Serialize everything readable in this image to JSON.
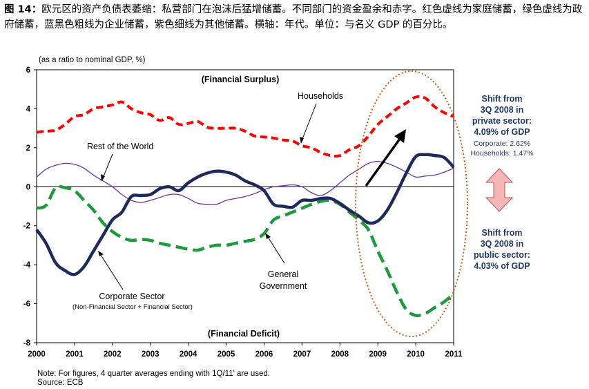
{
  "caption": {
    "label": "图 14：",
    "text": "欧元区的资产负债表萎缩：私营部门在泡沫后猛增储蓄。不同部门的资金盈余和赤字。红色虚线为家庭储蓄，绿色虚线为政府储蓄，蓝黑色粗线为企业储蓄，紫色细线为其他储蓄。横轴：年代。单位：与名义 GDP 的百分比。"
  },
  "notes": {
    "line1": "Note: For figures, 4 quarter averages ending with 1Q/11' are used.",
    "line2": "Source: ECB"
  },
  "chart_data": {
    "type": "line",
    "ylabel": "(as a ratio to nominal GDP, %)",
    "top_label": "(Financial Surplus)",
    "bottom_label": "(Financial Deficit)",
    "xlim": [
      2000,
      2011
    ],
    "ylim": [
      -8,
      6
    ],
    "x_ticks": [
      "2000",
      "2001",
      "2002",
      "2003",
      "2004",
      "2005",
      "2006",
      "2007",
      "2008",
      "2009",
      "2010",
      "2011"
    ],
    "y_ticks": [
      "6",
      "4",
      "2",
      "0",
      "-2",
      "-4",
      "-6",
      "-8"
    ],
    "grid": false,
    "series": [
      {
        "name": "Households",
        "color": "#ff0000",
        "style": "red-dashed",
        "x": [
          2000.0,
          2000.25,
          2000.5,
          2000.75,
          2001.0,
          2001.25,
          2001.5,
          2001.75,
          2002.0,
          2002.25,
          2002.5,
          2002.75,
          2003.0,
          2003.25,
          2003.5,
          2003.75,
          2004.0,
          2004.25,
          2004.5,
          2004.75,
          2005.0,
          2005.25,
          2005.5,
          2005.75,
          2006.0,
          2006.25,
          2006.5,
          2006.75,
          2007.0,
          2007.25,
          2007.5,
          2007.75,
          2008.0,
          2008.25,
          2008.5,
          2008.75,
          2009.0,
          2009.25,
          2009.5,
          2009.75,
          2010.0,
          2010.25,
          2010.5,
          2010.75,
          2011.0
        ],
        "values": [
          2.8,
          2.85,
          2.9,
          3.2,
          3.6,
          3.7,
          4.0,
          4.1,
          4.2,
          4.35,
          4.0,
          3.8,
          3.7,
          3.4,
          3.55,
          3.2,
          3.25,
          3.35,
          3.05,
          3.0,
          3.0,
          3.0,
          2.85,
          2.6,
          2.55,
          2.5,
          2.4,
          2.35,
          2.1,
          2.0,
          1.75,
          1.6,
          1.6,
          1.9,
          2.1,
          2.6,
          3.2,
          3.6,
          4.0,
          4.3,
          4.6,
          4.55,
          4.1,
          3.8,
          3.6
        ]
      },
      {
        "name": "Rest of the World",
        "color": "#7030a0",
        "style": "purple-thin",
        "x": [
          2000.0,
          2000.25,
          2000.5,
          2000.75,
          2001.0,
          2001.25,
          2001.5,
          2001.75,
          2002.0,
          2002.25,
          2002.5,
          2002.75,
          2003.0,
          2003.25,
          2003.5,
          2003.75,
          2004.0,
          2004.25,
          2004.5,
          2004.75,
          2005.0,
          2005.25,
          2005.5,
          2005.75,
          2006.0,
          2006.25,
          2006.5,
          2006.75,
          2007.0,
          2007.25,
          2007.5,
          2007.75,
          2008.0,
          2008.25,
          2008.5,
          2008.75,
          2009.0,
          2009.25,
          2009.5,
          2009.75,
          2010.0,
          2010.25,
          2010.5,
          2010.75,
          2011.0
        ],
        "values": [
          0.5,
          0.9,
          1.1,
          1.2,
          1.15,
          0.95,
          0.6,
          0.3,
          0.0,
          -0.4,
          -0.7,
          -0.8,
          -0.7,
          -0.55,
          -0.4,
          -0.4,
          -0.6,
          -0.85,
          -0.9,
          -0.9,
          -0.7,
          -0.6,
          -0.5,
          -0.35,
          -0.15,
          0.0,
          0.05,
          0.1,
          0.0,
          -0.3,
          -0.45,
          -0.2,
          0.2,
          0.6,
          0.9,
          1.2,
          1.3,
          1.2,
          1.0,
          0.75,
          0.5,
          0.55,
          0.6,
          0.75,
          0.95
        ]
      },
      {
        "name": "Corporate Sector",
        "subname": "(Non-Financial Sector + Financial Sector)",
        "color": "#1f2a5c",
        "style": "navy-thick",
        "x": [
          2000.0,
          2000.25,
          2000.5,
          2000.75,
          2001.0,
          2001.25,
          2001.5,
          2001.75,
          2002.0,
          2002.25,
          2002.5,
          2002.75,
          2003.0,
          2003.25,
          2003.5,
          2003.75,
          2004.0,
          2004.25,
          2004.5,
          2004.75,
          2005.0,
          2005.25,
          2005.5,
          2005.75,
          2006.0,
          2006.25,
          2006.5,
          2006.75,
          2007.0,
          2007.25,
          2007.5,
          2007.75,
          2008.0,
          2008.25,
          2008.5,
          2008.75,
          2009.0,
          2009.25,
          2009.5,
          2009.75,
          2010.0,
          2010.25,
          2010.5,
          2010.75,
          2011.0
        ],
        "values": [
          -2.2,
          -2.9,
          -3.9,
          -4.3,
          -4.5,
          -4.1,
          -3.3,
          -2.5,
          -1.7,
          -1.3,
          -0.5,
          -0.45,
          -0.4,
          -0.1,
          0.0,
          -0.2,
          0.2,
          0.5,
          0.7,
          0.8,
          0.75,
          0.6,
          0.3,
          0.1,
          -0.2,
          -0.9,
          -1.0,
          -1.05,
          -0.7,
          -0.7,
          -0.6,
          -0.6,
          -0.85,
          -1.2,
          -1.5,
          -1.85,
          -1.75,
          -1.2,
          -0.3,
          0.7,
          1.55,
          1.65,
          1.6,
          1.5,
          1.0
        ]
      },
      {
        "name": "General Government",
        "color": "#1e9a3c",
        "style": "green-dashed",
        "x": [
          2000.0,
          2000.25,
          2000.5,
          2000.75,
          2001.0,
          2001.25,
          2001.5,
          2001.75,
          2002.0,
          2002.25,
          2002.5,
          2002.75,
          2003.0,
          2003.25,
          2003.5,
          2003.75,
          2004.0,
          2004.25,
          2004.5,
          2004.75,
          2005.0,
          2005.25,
          2005.5,
          2005.75,
          2006.0,
          2006.25,
          2006.5,
          2006.75,
          2007.0,
          2007.25,
          2007.5,
          2007.75,
          2008.0,
          2008.25,
          2008.5,
          2008.75,
          2009.0,
          2009.25,
          2009.5,
          2009.75,
          2010.0,
          2010.25,
          2010.5,
          2010.75,
          2011.0
        ],
        "values": [
          -1.1,
          -0.95,
          -0.05,
          -0.05,
          -0.2,
          -0.7,
          -1.2,
          -1.85,
          -2.3,
          -2.6,
          -2.75,
          -2.7,
          -2.75,
          -2.9,
          -3.0,
          -3.1,
          -3.2,
          -3.25,
          -3.1,
          -3.0,
          -3.0,
          -2.9,
          -2.8,
          -2.7,
          -2.4,
          -1.7,
          -1.5,
          -1.3,
          -1.1,
          -0.9,
          -0.75,
          -0.7,
          -0.9,
          -1.3,
          -1.7,
          -2.2,
          -3.3,
          -4.3,
          -5.4,
          -6.3,
          -6.6,
          -6.5,
          -6.2,
          -5.9,
          -5.5
        ]
      }
    ],
    "annotations": {
      "households": "Households",
      "rest_of_world": "Rest of the World",
      "corporate": "Corporate Sector",
      "corporate_sub": "(Non-Financial Sector + Financial Sector)",
      "government_1": "General",
      "government_2": "Government"
    },
    "side_text": {
      "private_1": "Shift from",
      "private_2": "3Q 2008 in",
      "private_3": "private sector:",
      "private_4": "4.09% of GDP",
      "corporate_share": "Corporate: 2.62%",
      "households_share": "Households: 1.47%",
      "public_1": "Shift from",
      "public_2": "3Q 2008 in",
      "public_3": "public sector:",
      "public_4": "4.03% of GDP"
    },
    "colors": {
      "side_text": "#1f3864",
      "ellipse": "#c55a11",
      "double_arrow_fill": "#f4b6b6",
      "double_arrow_stroke": "#c0504d"
    }
  }
}
